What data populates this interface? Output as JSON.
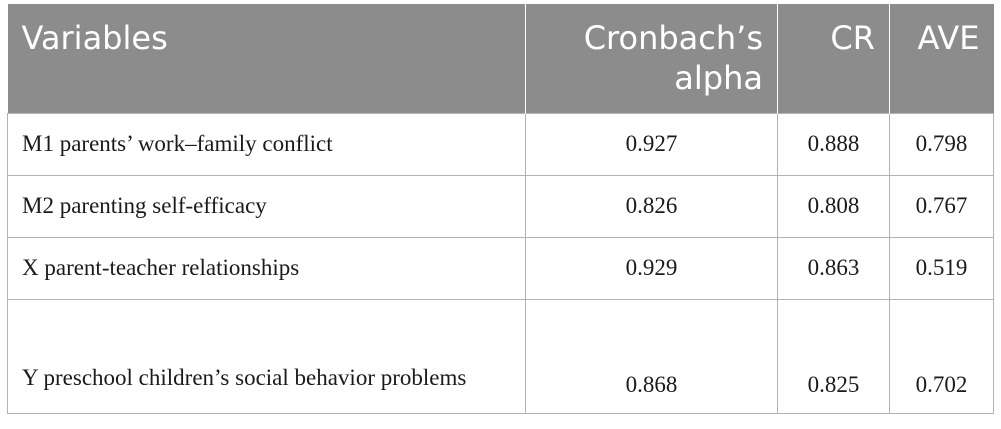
{
  "table": {
    "headers": {
      "variables": "Variables",
      "alpha": "Cronbach’s alpha",
      "cr": "CR",
      "ave": "AVE"
    },
    "rows": [
      {
        "variable": "M1 parents’ work–family conflict",
        "alpha": "0.927",
        "cr": "0.888",
        "ave": "0.798"
      },
      {
        "variable": "M2 parenting self-efficacy",
        "alpha": "0.826",
        "cr": "0.808",
        "ave": "0.767"
      },
      {
        "variable": "X parent-teacher relationships",
        "alpha": "0.929",
        "cr": "0.863",
        "ave": "0.519"
      },
      {
        "variable": "Y preschool children’s social behavior problems",
        "alpha": "0.868",
        "cr": "0.825",
        "ave": "0.702"
      }
    ]
  }
}
